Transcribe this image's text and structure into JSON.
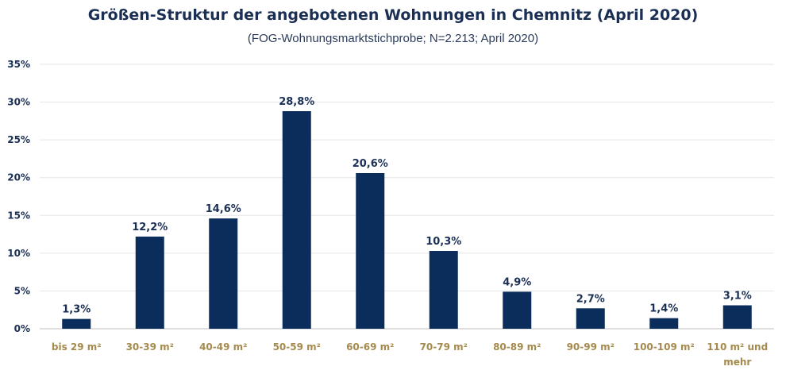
{
  "chart_data": {
    "type": "bar",
    "title": "Größen-Struktur der angebotenen Wohnungen in Chemnitz (April 2020)",
    "subtitle": "(FOG-Wohnungsmarktstichprobe; N=2.213; April 2020)",
    "categories": [
      "bis 29 m²",
      "30-39 m²",
      "40-49 m²",
      "50-59 m²",
      "60-69 m²",
      "70-79 m²",
      "80-89 m²",
      "90-99 m²",
      "100-109 m²",
      "110 m² und mehr"
    ],
    "category_lines": [
      [
        "bis 29 m²"
      ],
      [
        "30-39 m²"
      ],
      [
        "40-49 m²"
      ],
      [
        "50-59 m²"
      ],
      [
        "60-69 m²"
      ],
      [
        "70-79 m²"
      ],
      [
        "80-89 m²"
      ],
      [
        "90-99 m²"
      ],
      [
        "100-109 m²"
      ],
      [
        "110 m² und",
        "mehr"
      ]
    ],
    "values": [
      1.3,
      12.2,
      14.6,
      28.8,
      20.6,
      10.3,
      4.9,
      2.7,
      1.4,
      3.1
    ],
    "data_labels": [
      "1,3%",
      "12,2%",
      "14,6%",
      "28,8%",
      "20,6%",
      "10,3%",
      "4,9%",
      "2,7%",
      "1,4%",
      "3,1%"
    ],
    "ylim": [
      0,
      35
    ],
    "yticks": [
      0,
      5,
      10,
      15,
      20,
      25,
      30,
      35
    ],
    "ytick_labels": [
      "0%",
      "5%",
      "10%",
      "15%",
      "20%",
      "25%",
      "30%",
      "35%"
    ],
    "grid": true,
    "legend": "none",
    "bar_color": "#0b2d5b",
    "tick_color": "#a58a4d",
    "xlabel": "",
    "ylabel": ""
  }
}
